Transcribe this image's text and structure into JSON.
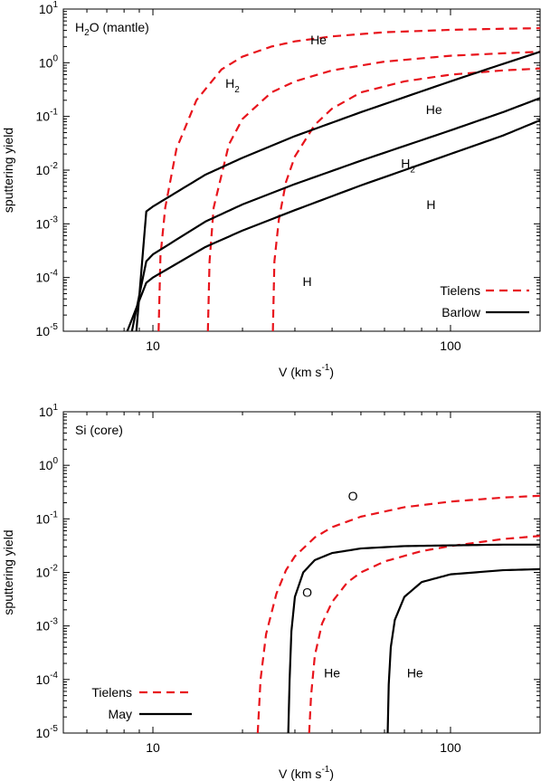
{
  "chart_data": [
    {
      "type": "line",
      "title": "",
      "panel_label": {
        "main": "H",
        "sub": "2",
        "rest": "O (mantle)"
      },
      "xlabel": {
        "main": "V (km s",
        "sup": "-1",
        "end": ")"
      },
      "ylabel": "sputtering yield",
      "xscale": "log",
      "yscale": "log",
      "xlim": [
        5,
        200
      ],
      "ylim": [
        1e-05,
        10
      ],
      "xticks": [
        10,
        100
      ],
      "xtick_labels": [
        "10",
        "100"
      ],
      "yticks": [
        1e-05,
        0.0001,
        0.001,
        0.01,
        0.1,
        1,
        10
      ],
      "ytick_labels": [
        {
          "base": "10",
          "exp": "-5"
        },
        {
          "base": "10",
          "exp": "-4"
        },
        {
          "base": "10",
          "exp": "-3"
        },
        {
          "base": "10",
          "exp": "-2"
        },
        {
          "base": "10",
          "exp": "-1"
        },
        {
          "base": "10",
          "exp": "0"
        },
        {
          "base": "10",
          "exp": "1"
        }
      ],
      "grid": false,
      "legend": {
        "position": "bottom-right",
        "entries": [
          {
            "label": "Tielens",
            "style": "dashed",
            "color": "#e8141c"
          },
          {
            "label": "Barlow",
            "style": "solid",
            "color": "#000000"
          }
        ]
      },
      "series": [
        {
          "model": "Tielens",
          "projectile": "He",
          "style": "dashed",
          "color": "#e8141c",
          "x": [
            10.45,
            10.6,
            11,
            12,
            14,
            17,
            20,
            25,
            30,
            40,
            60,
            100,
            150,
            200
          ],
          "y": [
            1e-05,
            0.00025,
            0.002,
            0.025,
            0.2,
            0.75,
            1.3,
            2.0,
            2.5,
            3.1,
            3.7,
            4.1,
            4.3,
            4.4
          ]
        },
        {
          "model": "Tielens",
          "projectile": "H2",
          "style": "dashed",
          "color": "#e8141c",
          "x": [
            15.3,
            15.5,
            16,
            18,
            20,
            25,
            30,
            40,
            60,
            100,
            150,
            200
          ],
          "y": [
            1e-05,
            0.0002,
            0.002,
            0.03,
            0.09,
            0.28,
            0.45,
            0.72,
            1.05,
            1.35,
            1.5,
            1.6
          ]
        },
        {
          "model": "Tielens",
          "projectile": "H",
          "style": "dashed",
          "color": "#e8141c",
          "x": [
            25.3,
            25.6,
            26.5,
            28,
            30,
            35,
            40,
            50,
            70,
            100,
            150,
            200
          ],
          "y": [
            1e-05,
            0.0002,
            0.0012,
            0.006,
            0.018,
            0.07,
            0.14,
            0.28,
            0.45,
            0.6,
            0.72,
            0.78
          ]
        },
        {
          "model": "Barlow",
          "projectile": "He",
          "style": "solid",
          "color": "#000000",
          "x": [
            8.8,
            9.5,
            10,
            15,
            20,
            30,
            50,
            100,
            150,
            200
          ],
          "y": [
            1e-05,
            0.0017,
            0.0021,
            0.0082,
            0.017,
            0.043,
            0.12,
            0.45,
            0.95,
            1.6
          ]
        },
        {
          "model": "Barlow",
          "projectile": "H2",
          "style": "solid",
          "color": "#000000",
          "x": [
            8.5,
            9.5,
            10,
            15,
            20,
            30,
            50,
            100,
            150,
            200
          ],
          "y": [
            1e-05,
            0.0002,
            0.00027,
            0.0011,
            0.0023,
            0.0055,
            0.015,
            0.055,
            0.12,
            0.22
          ]
        },
        {
          "model": "Barlow",
          "projectile": "H",
          "style": "solid",
          "color": "#000000",
          "x": [
            8.2,
            9.5,
            10,
            15,
            20,
            30,
            50,
            100,
            150,
            200
          ],
          "y": [
            1e-05,
            8e-05,
            0.0001,
            0.00037,
            0.00075,
            0.0018,
            0.0052,
            0.02,
            0.044,
            0.085
          ]
        }
      ],
      "annotations": [
        {
          "text": "He",
          "sub": "",
          "x": 36,
          "y": 2.2
        },
        {
          "text": "H",
          "sub": "2",
          "x": 18.5,
          "y": 0.34
        },
        {
          "text": "He",
          "sub": "",
          "x": 88,
          "y": 0.11
        },
        {
          "text": "H",
          "sub": "2",
          "x": 72,
          "y": 0.011
        },
        {
          "text": "H",
          "sub": "",
          "x": 86,
          "y": 0.0019
        },
        {
          "text": "H",
          "sub": "",
          "x": 33,
          "y": 7e-05
        }
      ]
    },
    {
      "type": "line",
      "title": "",
      "panel_label": {
        "main": "Si (core)",
        "sub": "",
        "rest": ""
      },
      "xlabel": {
        "main": "V (km s",
        "sup": "-1",
        "end": ")"
      },
      "ylabel": "sputtering yield",
      "xscale": "log",
      "yscale": "log",
      "xlim": [
        5,
        200
      ],
      "ylim": [
        1e-05,
        10
      ],
      "xticks": [
        10,
        100
      ],
      "xtick_labels": [
        "10",
        "100"
      ],
      "yticks": [
        1e-05,
        0.0001,
        0.001,
        0.01,
        0.1,
        1,
        10
      ],
      "ytick_labels": [
        {
          "base": "10",
          "exp": "-5"
        },
        {
          "base": "10",
          "exp": "-4"
        },
        {
          "base": "10",
          "exp": "-3"
        },
        {
          "base": "10",
          "exp": "-2"
        },
        {
          "base": "10",
          "exp": "-1"
        },
        {
          "base": "10",
          "exp": "0"
        },
        {
          "base": "10",
          "exp": "1"
        }
      ],
      "grid": false,
      "legend": {
        "position": "bottom-left",
        "entries": [
          {
            "label": "Tielens",
            "style": "dashed",
            "color": "#e8141c"
          },
          {
            "label": "May",
            "style": "solid",
            "color": "#000000"
          }
        ]
      },
      "series": [
        {
          "model": "Tielens",
          "projectile": "O",
          "style": "dashed",
          "color": "#e8141c",
          "x": [
            22.5,
            23,
            24,
            26,
            28,
            30,
            35,
            40,
            50,
            70,
            100,
            150,
            200
          ],
          "y": [
            1e-05,
            0.0001,
            0.0007,
            0.004,
            0.011,
            0.02,
            0.045,
            0.07,
            0.11,
            0.165,
            0.21,
            0.25,
            0.27
          ]
        },
        {
          "model": "Tielens",
          "projectile": "He",
          "style": "dashed",
          "color": "#e8141c",
          "x": [
            33.5,
            34,
            35,
            37,
            40,
            45,
            50,
            60,
            80,
            100,
            150,
            200
          ],
          "y": [
            1e-05,
            5e-05,
            0.00028,
            0.0011,
            0.0028,
            0.0065,
            0.01,
            0.016,
            0.025,
            0.031,
            0.042,
            0.048
          ]
        },
        {
          "model": "May",
          "projectile": "O",
          "style": "solid",
          "color": "#000000",
          "x": [
            28.5,
            28.8,
            29.2,
            30,
            32,
            35,
            40,
            50,
            70,
            100,
            150,
            200
          ],
          "y": [
            1e-05,
            0.0001,
            0.0008,
            0.0035,
            0.01,
            0.017,
            0.023,
            0.028,
            0.031,
            0.032,
            0.033,
            0.033
          ]
        },
        {
          "model": "May",
          "projectile": "He",
          "style": "solid",
          "color": "#000000",
          "x": [
            61.5,
            62,
            63,
            65,
            70,
            80,
            100,
            150,
            200
          ],
          "y": [
            1e-05,
            8e-05,
            0.0004,
            0.0013,
            0.0035,
            0.0066,
            0.0092,
            0.011,
            0.0115
          ]
        }
      ],
      "annotations": [
        {
          "text": "O",
          "sub": "",
          "x": 47,
          "y": 0.22
        },
        {
          "text": "O",
          "sub": "",
          "x": 33,
          "y": 0.0035
        },
        {
          "text": "He",
          "sub": "",
          "x": 40,
          "y": 0.00011
        },
        {
          "text": "He",
          "sub": "",
          "x": 76,
          "y": 0.00011
        }
      ]
    }
  ]
}
